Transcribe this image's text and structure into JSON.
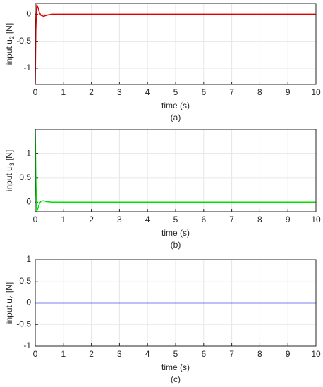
{
  "chart_data": [
    {
      "type": "line",
      "caption": "(a)",
      "xlabel": "time (s)",
      "ylabel": "input u",
      "ylabel_sub": "2",
      "ylabel_unit": "[N]",
      "x": [
        0,
        0.02,
        0.05,
        0.1,
        0.15,
        0.2,
        0.3,
        0.4,
        0.6,
        1,
        10
      ],
      "series": [
        {
          "color": "#e00000",
          "values": [
            -1.3,
            -0.3,
            0.18,
            0.12,
            0.03,
            -0.02,
            -0.04,
            -0.02,
            0,
            0,
            0
          ]
        }
      ],
      "xlim": [
        0,
        10
      ],
      "xticks": [
        0,
        1,
        2,
        3,
        4,
        5,
        6,
        7,
        8,
        9,
        10
      ],
      "ylim": [
        -1.3,
        0.2
      ],
      "yticks": [
        -1,
        -0.5,
        0
      ],
      "grid": true
    },
    {
      "type": "line",
      "caption": "(b)",
      "xlabel": "time (s)",
      "ylabel": "input u",
      "ylabel_sub": "3",
      "ylabel_unit": "[N]",
      "x": [
        0,
        0.02,
        0.05,
        0.1,
        0.15,
        0.2,
        0.3,
        0.4,
        0.6,
        1,
        10
      ],
      "series": [
        {
          "color": "#00e000",
          "values": [
            1.5,
            0.5,
            -0.2,
            -0.12,
            -0.03,
            0.02,
            0.03,
            0.01,
            0,
            0,
            0
          ]
        }
      ],
      "xlim": [
        0,
        10
      ],
      "xticks": [
        0,
        1,
        2,
        3,
        4,
        5,
        6,
        7,
        8,
        9,
        10
      ],
      "ylim": [
        -0.2,
        1.5
      ],
      "yticks": [
        0,
        0.5,
        1
      ],
      "grid": true
    },
    {
      "type": "line",
      "caption": "(c)",
      "xlabel": "time (s)",
      "ylabel": "input u",
      "ylabel_sub": "4",
      "ylabel_unit": "[N]",
      "x": [
        0,
        10
      ],
      "series": [
        {
          "color": "#0000e0",
          "values": [
            0,
            0
          ]
        }
      ],
      "xlim": [
        0,
        10
      ],
      "xticks": [
        0,
        1,
        2,
        3,
        4,
        5,
        6,
        7,
        8,
        9,
        10
      ],
      "ylim": [
        -1,
        1
      ],
      "yticks": [
        -1,
        -0.5,
        0,
        0.5,
        1
      ],
      "grid": true
    }
  ]
}
